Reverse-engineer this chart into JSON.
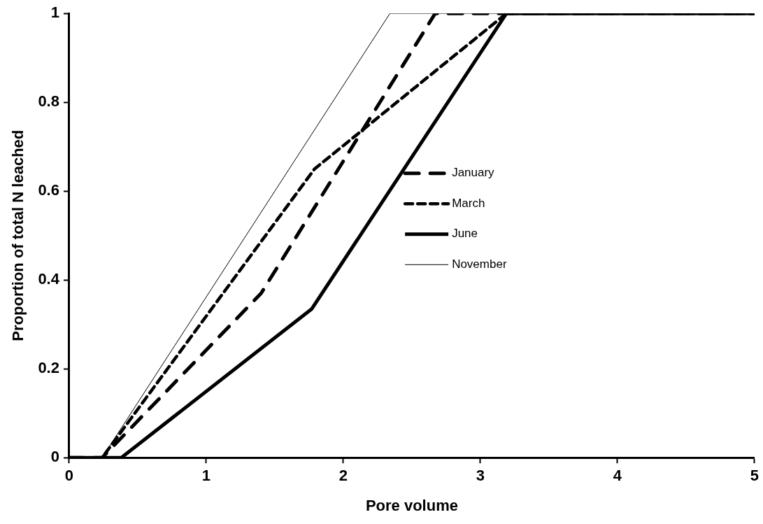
{
  "chart_data": {
    "type": "line",
    "xlabel": "Pore volume",
    "ylabel": "Proportion of total N leached",
    "xlim": [
      0,
      5
    ],
    "xticks": [
      0,
      1,
      2,
      3,
      4,
      5
    ],
    "ylim": [
      0,
      1
    ],
    "yticks": [
      0,
      0.2,
      0.4,
      0.6,
      0.8,
      1
    ],
    "grid": false,
    "legend": "right",
    "marker": "none",
    "series": [
      {
        "name": "January",
        "color": "#000000",
        "line_style": "dashed",
        "x": [
          0,
          0.24,
          1.4,
          2.67,
          5
        ],
        "values": [
          0,
          0,
          0.37,
          1,
          1
        ]
      },
      {
        "name": "March",
        "color": "#000000",
        "line_style": "dashed",
        "x": [
          0,
          0.24,
          1.79,
          3.19,
          5
        ],
        "values": [
          0,
          0,
          0.65,
          1,
          1
        ]
      },
      {
        "name": "June",
        "color": "#000000",
        "line_style": "solid",
        "x": [
          0,
          0.38,
          1.77,
          3.19,
          5
        ],
        "values": [
          0,
          0,
          0.335,
          1,
          1
        ]
      },
      {
        "name": "November",
        "color": "#000000",
        "line_style": "solid",
        "x": [
          0,
          0.24,
          2.34,
          5
        ],
        "values": [
          0,
          0,
          1,
          1
        ]
      }
    ]
  }
}
